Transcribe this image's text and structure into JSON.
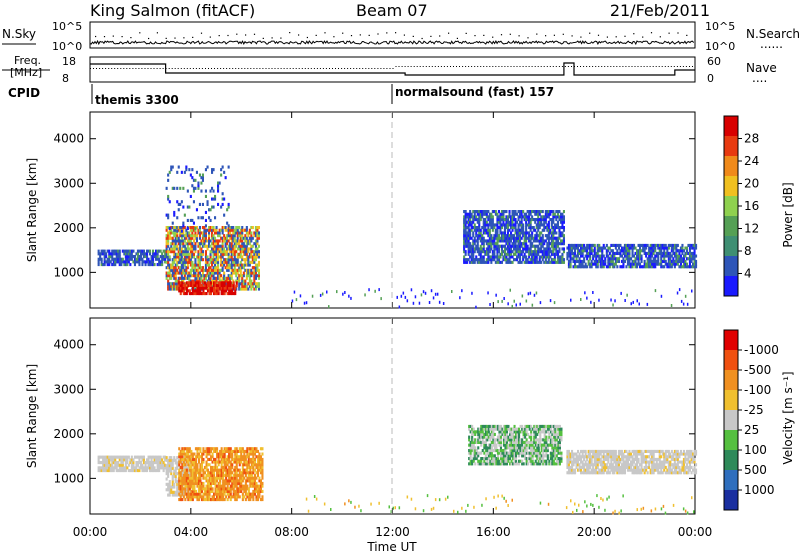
{
  "header": {
    "station": "King Salmon (fitACF)",
    "beam": "Beam 07",
    "date": "21/Feb/2011"
  },
  "sky_panel": {
    "left_label": "N.Sky",
    "right_label": "N.Search",
    "right_legend": "......",
    "ticks": [
      "10^5",
      "10^0"
    ]
  },
  "freq_panel": {
    "left_label_1": "Freq.",
    "left_label_2": "[MHz]",
    "left_ticks": [
      "18",
      "8"
    ],
    "right_label": "Nave",
    "right_legend": "....",
    "right_ticks": [
      "60",
      "0"
    ]
  },
  "cpid_panel": {
    "label": "CPID",
    "modes": [
      {
        "name": "themis 3300",
        "start_hour": 0
      },
      {
        "name": "normalsound (fast) 157",
        "start_hour": 12
      }
    ]
  },
  "time_axis": {
    "label": "Time UT",
    "ticks": [
      "00:00",
      "04:00",
      "08:00",
      "12:00",
      "16:00",
      "20:00",
      "00:00"
    ]
  },
  "colors": {
    "power": [
      "#1a1aff",
      "#2e55b8",
      "#3f8f73",
      "#55a055",
      "#8fd14f",
      "#f0c020",
      "#f08a1a",
      "#e83a10",
      "#d80000"
    ],
    "velocity": [
      "#1a2fa0",
      "#2f6fbe",
      "#2e8a5a",
      "#55c040",
      "#c8c8c8",
      "#f0c030",
      "#f09020",
      "#f05010",
      "#e00000"
    ]
  },
  "chart_data": [
    {
      "type": "heatmap",
      "title": "Power",
      "xlabel": "Time UT",
      "ylabel": "Slant Range [km]",
      "x_ticks": [
        "00:00",
        "04:00",
        "08:00",
        "12:00",
        "16:00",
        "20:00",
        "00:00"
      ],
      "xlim_hours": [
        0,
        24
      ],
      "y_ticks": [
        1000,
        2000,
        3000,
        4000
      ],
      "ylim": [
        200,
        4600
      ],
      "colorbar": {
        "label": "Power [dB]",
        "ticks": [
          "4",
          "8",
          "12",
          "16",
          "20",
          "24",
          "28"
        ],
        "range": [
          0,
          30
        ]
      },
      "regions": [
        {
          "t0": 0.3,
          "t1": 3.0,
          "r0": 1150,
          "r1": 1500,
          "level": "low"
        },
        {
          "t0": 3.0,
          "t1": 6.7,
          "r0": 600,
          "r1": 2000,
          "level": "high"
        },
        {
          "t0": 3.5,
          "t1": 5.8,
          "r0": 500,
          "r1": 800,
          "level": "max"
        },
        {
          "t0": 3.0,
          "t1": 5.5,
          "r0": 1900,
          "r1": 3400,
          "level": "sparse"
        },
        {
          "t0": 14.8,
          "t1": 18.8,
          "r0": 1200,
          "r1": 2400,
          "level": "low"
        },
        {
          "t0": 18.9,
          "t1": 24.0,
          "r0": 1100,
          "r1": 1600,
          "level": "low"
        }
      ]
    },
    {
      "type": "heatmap",
      "title": "Velocity",
      "xlabel": "Time UT",
      "ylabel": "Slant Range [km]",
      "x_ticks": [
        "00:00",
        "04:00",
        "08:00",
        "12:00",
        "16:00",
        "20:00",
        "00:00"
      ],
      "xlim_hours": [
        0,
        24
      ],
      "y_ticks": [
        1000,
        2000,
        3000,
        4000
      ],
      "ylim": [
        200,
        4600
      ],
      "colorbar": {
        "label": "Velocity [m s⁻¹]",
        "ticks": [
          "1000",
          "500",
          "100",
          "25",
          "-25",
          "-100",
          "-500",
          "-1000"
        ],
        "range": [
          -1000,
          1000
        ]
      },
      "regions": [
        {
          "t0": 0.3,
          "t1": 3.0,
          "r0": 1150,
          "r1": 1500,
          "level": "ground"
        },
        {
          "t0": 3.0,
          "t1": 4.0,
          "r0": 600,
          "r1": 1500,
          "level": "ground"
        },
        {
          "t0": 3.5,
          "t1": 6.8,
          "r0": 500,
          "r1": 1700,
          "level": "negative"
        },
        {
          "t0": 15.0,
          "t1": 18.7,
          "r0": 1300,
          "r1": 2200,
          "level": "mixed"
        },
        {
          "t0": 18.9,
          "t1": 24.0,
          "r0": 1100,
          "r1": 1600,
          "level": "ground"
        }
      ]
    }
  ]
}
